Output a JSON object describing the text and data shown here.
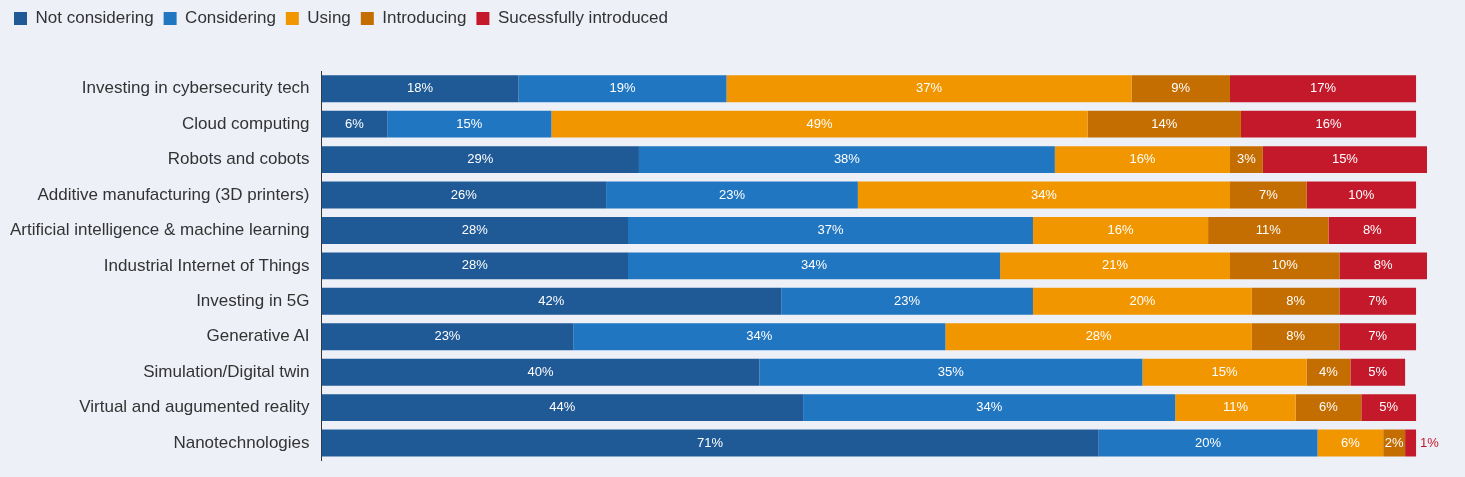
{
  "chart_data": {
    "type": "bar",
    "orientation": "horizontal",
    "stacked": true,
    "legend": "top left",
    "tick_labels": "y",
    "categories": [
      "Investing in cybersecurity tech",
      "Cloud computing",
      "Robots and cobots",
      "Additive manufacturing (3D printers)",
      "Artificial intelligence & machine learning",
      "Industrial Internet of Things",
      "Investing in 5G",
      "Generative AI",
      "Simulation/Digital twin",
      "Virtual and augumented reality",
      "Nanotechnologies"
    ],
    "series": [
      {
        "name": "Not considering",
        "color": "#1f5a96",
        "values": [
          18,
          6,
          29,
          26,
          28,
          28,
          42,
          23,
          40,
          44,
          71
        ],
        "value_labels": [
          "18%",
          "6%",
          "29%",
          "26%",
          "28%",
          "28%",
          "42%",
          "23%",
          "40%",
          "44%",
          "71%"
        ]
      },
      {
        "name": "Considering",
        "color": "#2176c1",
        "values": [
          19,
          15,
          38,
          23,
          37,
          34,
          23,
          34,
          35,
          34,
          20
        ],
        "value_labels": [
          "19%",
          "15%",
          "38%",
          "23%",
          "37%",
          "34%",
          "23%",
          "34%",
          "35%",
          "34%",
          "20%"
        ]
      },
      {
        "name": "Using",
        "color": "#f29600",
        "values": [
          37,
          49,
          16,
          34,
          16,
          21,
          20,
          28,
          15,
          11,
          6
        ],
        "value_labels": [
          "37%",
          "49%",
          "16%",
          "34%",
          "16%",
          "21%",
          "20%",
          "28%",
          "15%",
          "11%",
          "6%"
        ]
      },
      {
        "name": "Introducing",
        "color": "#c46d00",
        "values": [
          9,
          14,
          3,
          7,
          11,
          10,
          8,
          8,
          4,
          6,
          2
        ],
        "value_labels": [
          "9%",
          "14%",
          "3%",
          "7%",
          "11%",
          "10%",
          "8%",
          "8%",
          "4%",
          "6%",
          "2%"
        ]
      },
      {
        "name": "Sucessfully introduced",
        "color": "#c3192b",
        "values": [
          17,
          16,
          15,
          10,
          8,
          8,
          7,
          7,
          5,
          5,
          1
        ],
        "value_labels": [
          "17%",
          "16%",
          "15%",
          "10%",
          "8%",
          "8%",
          "7%",
          "7%",
          "5%",
          "5%",
          "1%"
        ]
      }
    ]
  }
}
